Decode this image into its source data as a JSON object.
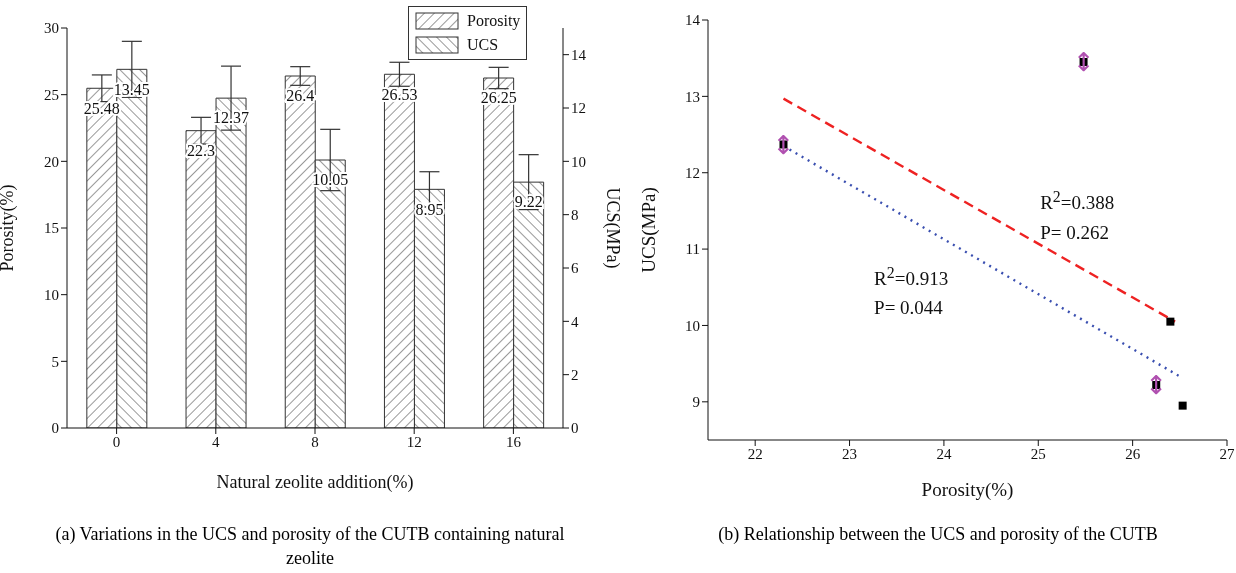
{
  "chart_data": [
    {
      "type": "bar",
      "title": "(a) Variations in the UCS and porosity of the CUTB containing natural zeolite",
      "xlabel": "Natural zeolite addition(%)",
      "ylabel": "Porosity(%)",
      "y2label": "UCS(MPa)",
      "categories": [
        "0",
        "4",
        "8",
        "12",
        "16"
      ],
      "series": [
        {
          "name": "Porosity",
          "color": "#333333",
          "values": [
            25.48,
            22.3,
            26.4,
            26.53,
            26.25
          ],
          "errors": [
            1.0,
            1.0,
            0.7,
            0.9,
            0.8
          ]
        },
        {
          "name": "UCS",
          "color": "#333333",
          "axis": "y2",
          "values": [
            13.45,
            12.37,
            10.05,
            8.95,
            9.22
          ],
          "errors": [
            1.05,
            1.2,
            1.15,
            0.66,
            1.03
          ]
        }
      ],
      "ylim": [
        0,
        30
      ],
      "yticks": [
        0,
        5,
        10,
        15,
        20,
        25,
        30
      ],
      "y2lim": [
        0,
        15
      ],
      "y2ticks": [
        0,
        2,
        4,
        6,
        8,
        10,
        12,
        14
      ],
      "data_labels": true,
      "legend": "top right"
    },
    {
      "type": "scatter",
      "title": "(b) Relationship between the UCS and porosity of the CUTB",
      "xlabel": "Porosity(%)",
      "ylabel": "UCS(MPa)",
      "series": [
        {
          "type": "scatter",
          "color": "#000000",
          "marker": "square",
          "x": [
            22.3,
            25.48,
            26.4,
            26.53,
            26.25
          ],
          "values": [
            12.37,
            13.45,
            10.05,
            8.95,
            9.22
          ]
        },
        {
          "type": "line",
          "color": "#ee2222",
          "line_style": "dashed",
          "marker": "none",
          "x": [
            22.3,
            26.45
          ],
          "values": [
            12.97,
            10.05
          ]
        },
        {
          "type": "line",
          "color": "#3a4fb0",
          "line_style": "dotted",
          "marker": "none",
          "x": [
            22.3,
            26.49
          ],
          "values": [
            12.35,
            9.34
          ]
        }
      ],
      "xlim": [
        21.5,
        27
      ],
      "xticks": [
        22,
        23,
        24,
        25,
        26,
        27
      ],
      "ylim": [
        8.5,
        14
      ],
      "yticks": [
        9,
        10,
        11,
        12,
        13,
        14
      ],
      "annotations": [
        "R$^{2}$=0.388",
        "P= 0.262",
        "R$^{2}$=0.913",
        "P= 0.044",
        {
          "text": "↕",
          "x": 22.3,
          "y": 12.37
        },
        {
          "text": "↕",
          "x": 25.48,
          "y": 13.45
        },
        {
          "text": "↕",
          "x": 26.25,
          "y": 9.22
        }
      ]
    }
  ]
}
